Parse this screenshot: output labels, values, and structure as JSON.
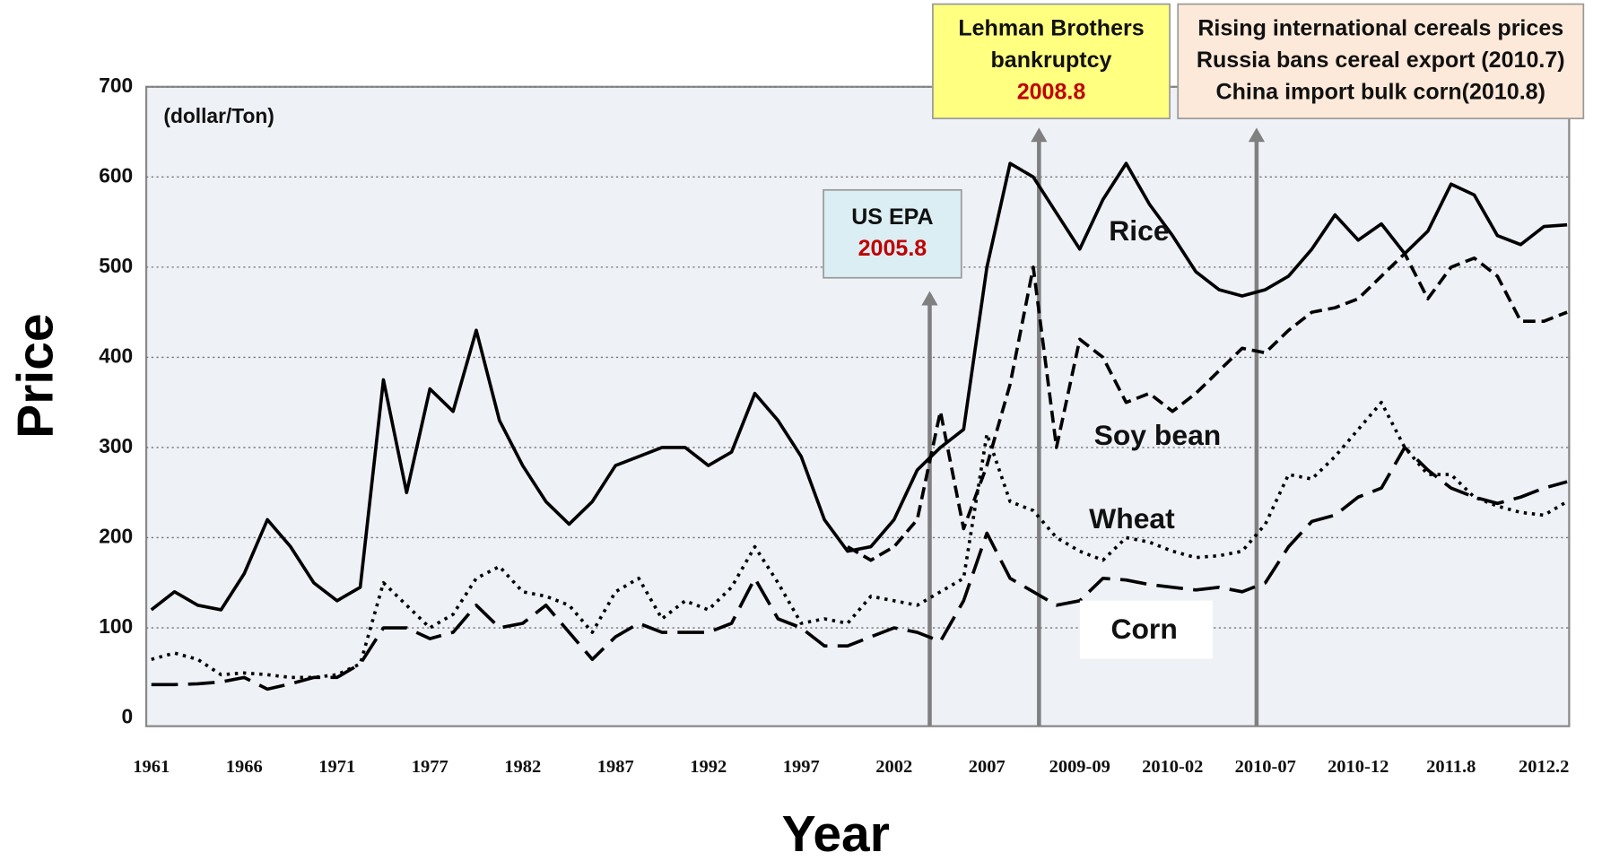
{
  "chart_data": {
    "type": "line",
    "xlabel": "Year",
    "ylabel": "Price",
    "unit_label": "(dollar/Ton)",
    "categories": [
      "1961",
      null,
      null,
      null,
      "1966",
      null,
      null,
      null,
      "1971",
      null,
      null,
      null,
      "1977",
      null,
      null,
      null,
      "1982",
      null,
      null,
      null,
      "1987",
      null,
      null,
      null,
      "1992",
      null,
      null,
      null,
      "1997",
      null,
      null,
      null,
      "2002",
      null,
      null,
      null,
      "2007",
      null,
      null,
      null,
      "2009-09",
      null,
      null,
      null,
      "2010-02",
      null,
      null,
      null,
      "2010-07",
      null,
      null,
      null,
      "2010-12",
      null,
      null,
      null,
      "2011.8",
      null,
      null,
      null,
      "2012.2",
      null
    ],
    "ylim": [
      0,
      700
    ],
    "yticks": [
      0,
      100,
      200,
      300,
      400,
      500,
      600,
      700
    ],
    "grid": true,
    "series": [
      {
        "name": "Rice",
        "color": "#000000",
        "values": [
          120,
          140,
          125,
          120,
          160,
          220,
          190,
          150,
          130,
          145,
          375,
          250,
          365,
          340,
          430,
          330,
          280,
          240,
          215,
          240,
          280,
          290,
          300,
          300,
          280,
          295,
          360,
          330,
          290,
          220,
          185,
          190,
          220,
          275,
          300,
          320,
          500,
          615,
          600,
          560,
          520,
          575,
          615,
          570,
          535,
          495,
          475,
          468,
          475,
          490,
          520,
          558,
          530,
          548,
          515,
          540,
          592,
          580,
          535,
          525,
          545,
          547
        ]
      },
      {
        "name": "Soy bean",
        "color": "#000000",
        "values": [
          null,
          null,
          null,
          null,
          null,
          null,
          null,
          null,
          null,
          null,
          null,
          null,
          null,
          null,
          null,
          null,
          null,
          null,
          null,
          null,
          null,
          null,
          null,
          null,
          null,
          null,
          null,
          null,
          null,
          null,
          190,
          175,
          190,
          220,
          340,
          210,
          280,
          370,
          500,
          300,
          420,
          400,
          350,
          360,
          340,
          360,
          385,
          410,
          405,
          430,
          450,
          455,
          465,
          490,
          515,
          465,
          500,
          510,
          490,
          440,
          440,
          450
        ]
      },
      {
        "name": "Wheat",
        "color": "#000000",
        "values": [
          65,
          72,
          65,
          48,
          50,
          48,
          45,
          45,
          48,
          60,
          150,
          125,
          100,
          115,
          155,
          168,
          140,
          135,
          125,
          95,
          140,
          155,
          110,
          130,
          120,
          145,
          190,
          150,
          105,
          110,
          105,
          135,
          130,
          125,
          140,
          155,
          315,
          240,
          230,
          200,
          185,
          175,
          200,
          195,
          185,
          178,
          180,
          185,
          215,
          270,
          265,
          290,
          320,
          350,
          300,
          270,
          270,
          245,
          235,
          228,
          225,
          240
        ]
      },
      {
        "name": "Corn",
        "color": "#000000",
        "values": [
          37,
          37,
          38,
          40,
          45,
          32,
          38,
          45,
          45,
          60,
          100,
          100,
          88,
          95,
          125,
          100,
          105,
          125,
          95,
          65,
          90,
          105,
          95,
          95,
          95,
          105,
          155,
          110,
          100,
          80,
          80,
          90,
          100,
          95,
          85,
          130,
          205,
          155,
          140,
          125,
          130,
          155,
          153,
          148,
          145,
          142,
          145,
          140,
          150,
          190,
          218,
          225,
          245,
          255,
          300,
          275,
          255,
          245,
          238,
          245,
          255,
          262
        ]
      }
    ],
    "annotations": [
      {
        "lines": [
          "US EPA"
        ],
        "date": "2005.8"
      },
      {
        "lines": [
          "Lehman Brothers",
          "bankruptcy"
        ],
        "date": "2008.8"
      },
      {
        "lines": [
          "Rising international cereals prices",
          "Russia bans cereal export (2010.7)",
          "China import bulk corn(2010.8)"
        ]
      }
    ]
  }
}
